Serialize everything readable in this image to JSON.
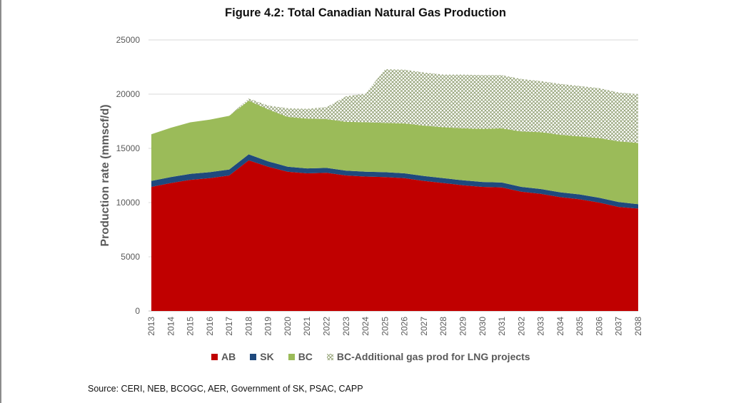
{
  "chart_data": {
    "type": "area",
    "stacked": true,
    "title": "Figure 4.2:  Total Canadian Natural Gas Production",
    "xlabel": "",
    "ylabel": "Production rate (mmscf/d)",
    "ylim": [
      0,
      25000
    ],
    "yticks": [
      0,
      5000,
      10000,
      15000,
      20000,
      25000
    ],
    "grid": true,
    "legend_position": "bottom",
    "categories": [
      "2013",
      "2014",
      "2015",
      "2016",
      "2017",
      "2018",
      "2019",
      "2020",
      "2021",
      "2022",
      "2023",
      "2024",
      "2025",
      "2026",
      "2027",
      "2028",
      "2029",
      "2030",
      "2031",
      "2032",
      "2033",
      "2034",
      "2035",
      "2036",
      "2037",
      "2038"
    ],
    "series": [
      {
        "name": "AB",
        "color": "#c00000",
        "pattern": "solid",
        "values": [
          11450,
          11800,
          12100,
          12250,
          12500,
          13900,
          13300,
          12850,
          12700,
          12750,
          12500,
          12400,
          12350,
          12250,
          12000,
          11800,
          11600,
          11450,
          11400,
          11000,
          10800,
          10500,
          10300,
          10000,
          9600,
          9450
        ]
      },
      {
        "name": "SK",
        "color": "#1f497d",
        "pattern": "solid",
        "values": [
          550,
          550,
          550,
          550,
          550,
          550,
          500,
          450,
          450,
          450,
          450,
          450,
          450,
          450,
          450,
          450,
          450,
          450,
          450,
          450,
          450,
          450,
          450,
          450,
          450,
          400
        ]
      },
      {
        "name": "BC",
        "color": "#9bbb59",
        "pattern": "solid",
        "values": [
          4300,
          4550,
          4750,
          4850,
          4950,
          4950,
          4800,
          4600,
          4600,
          4500,
          4500,
          4550,
          4550,
          4600,
          4650,
          4700,
          4800,
          4900,
          5000,
          5100,
          5250,
          5300,
          5350,
          5500,
          5600,
          5650
        ]
      },
      {
        "name": "BC-Additional gas prod for LNG projects",
        "color": "#7f8f5f",
        "pattern": "hatch",
        "values": [
          0,
          0,
          0,
          0,
          0,
          200,
          350,
          800,
          900,
          1100,
          2350,
          2650,
          4950,
          4950,
          4900,
          4850,
          4950,
          4950,
          4900,
          4850,
          4700,
          4700,
          4650,
          4600,
          4500,
          4500
        ]
      }
    ]
  },
  "legend": {
    "items": [
      {
        "label": "AB",
        "color": "#c00000"
      },
      {
        "label": "SK",
        "color": "#1f497d"
      },
      {
        "label": "BC",
        "color": "#9bbb59"
      },
      {
        "label": "BC-Additional gas prod for LNG projects",
        "color": "#7f8f5f"
      }
    ]
  },
  "source": "Source: CERI, NEB, BCOGC, AER, Government of SK, PSAC, CAPP"
}
